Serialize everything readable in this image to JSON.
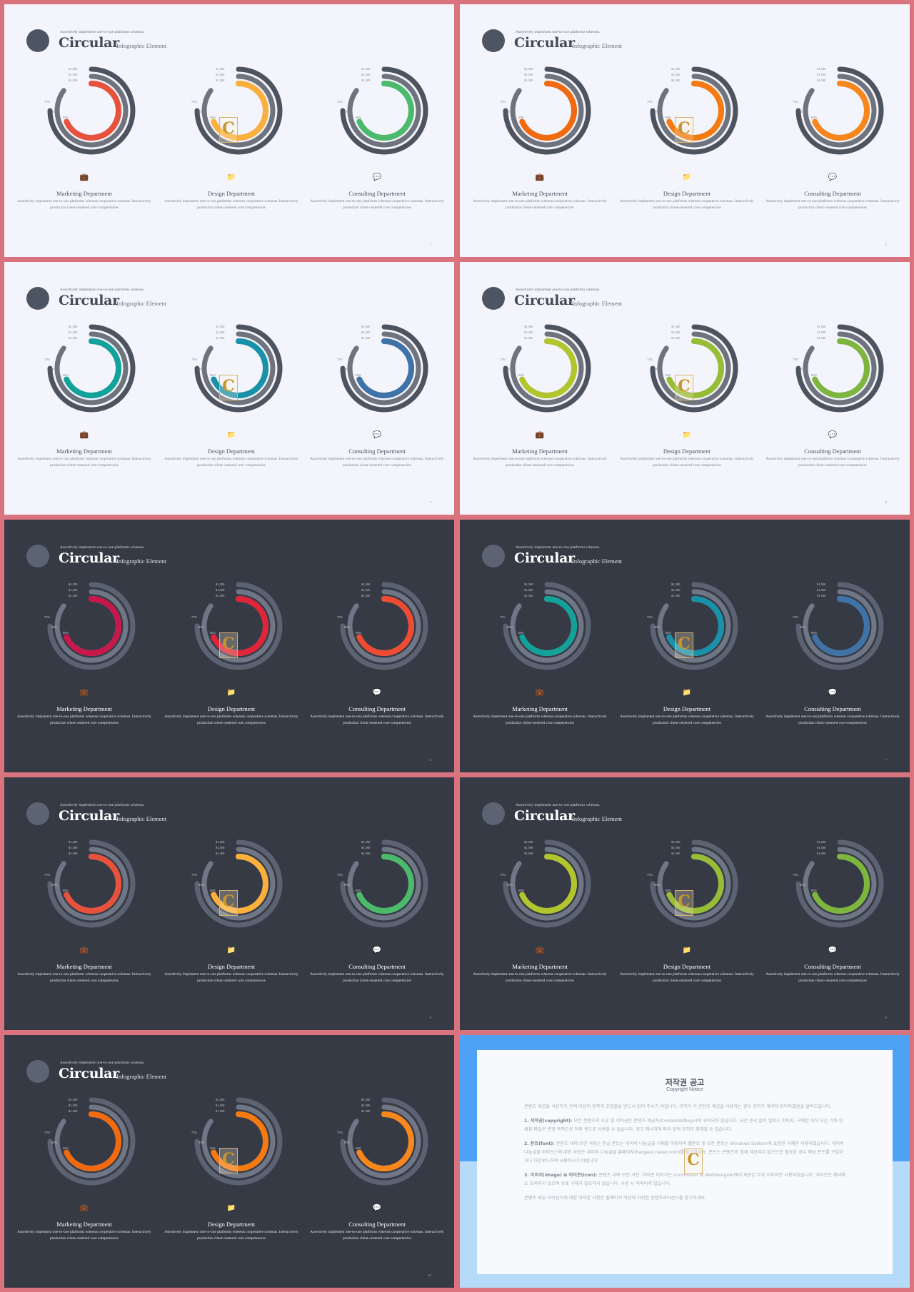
{
  "common": {
    "subtitle_top": "Assertively implement  one-to-one platforms whereas.",
    "title": "Circular",
    "title_sub": "Infographic Element",
    "values": [
      "$1,500",
      "$1,500",
      "$1,500"
    ],
    "percents": [
      "75%",
      "85%",
      "60%"
    ],
    "badge_letter": "C",
    "departments": [
      {
        "title": "Marketing Department",
        "icon": "briefcase-icon",
        "glyph": "💼",
        "desc": "Assertively implement  one-to-one platforms whereas cooperative schemas. Interactively productize  client-centered  core competencies"
      },
      {
        "title": "Design Department",
        "icon": "folder-icon",
        "glyph": "📁",
        "desc": "Assertively implement  one-to-one platforms whereas cooperative schemas. Interactively productize  client-centered  core competencies"
      },
      {
        "title": "Consulting Department",
        "icon": "speech-bubble-icon",
        "glyph": "💬",
        "desc": "Assertively implement  one-to-one platforms whereas cooperative schemas. Interactively productize  client-centered  core competencies"
      }
    ]
  },
  "slides": [
    {
      "theme": "light",
      "page": "1",
      "colors": [
        "#e8523c",
        "#fbb03b",
        "#4bbb6b"
      ]
    },
    {
      "theme": "light",
      "page": "2",
      "colors": [
        "#f16a10",
        "#f57b10",
        "#f7871c"
      ]
    },
    {
      "theme": "light",
      "page": "4",
      "colors": [
        "#13a29a",
        "#1792a8",
        "#3f73a8"
      ]
    },
    {
      "theme": "light",
      "page": "3",
      "colors": [
        "#b3c52c",
        "#97bc36",
        "#7eb53e"
      ]
    },
    {
      "theme": "dark",
      "page": "6",
      "colors": [
        "#c8174a",
        "#e0243a",
        "#ef4b33"
      ]
    },
    {
      "theme": "dark",
      "page": "7",
      "colors": [
        "#13a29a",
        "#1792a8",
        "#3f73a8"
      ]
    },
    {
      "theme": "dark",
      "page": "8",
      "colors": [
        "#e8523c",
        "#fbb03b",
        "#4bbb6b"
      ]
    },
    {
      "theme": "dark",
      "page": "9",
      "colors": [
        "#b3c52c",
        "#97bc36",
        "#7eb53e"
      ]
    },
    {
      "theme": "dark",
      "page": "10",
      "colors": [
        "#f16a10",
        "#f57b10",
        "#f7871c"
      ]
    }
  ],
  "chart_data": {
    "type": "radial-bar",
    "series": [
      {
        "value": 75,
        "label": "75%"
      },
      {
        "value": 85,
        "label": "85%"
      },
      {
        "value": 60,
        "label": "60%"
      }
    ]
  },
  "copyright": {
    "title": "저작권 공고",
    "subtitle": "Copyright Notice",
    "paragraphs": [
      {
        "head": "",
        "text": "콘텐츠 제공을 사용하기 전에 다음의 항목과 조항들을 반드시 읽어 주시기 바랍니다. 귀하가 이 콘텐츠 제공을 사용하는 경우 귀하가 계약에 동의하였음을 알려드립니다."
      },
      {
        "head": "1. 저작권(copyright):",
        "text": " 모든 콘텐츠의 소유 및 저작권은 콘텐츠 제공자(Contentsofkeyo)에 귀속되어 있습니다. 사전 승낙 없이 업로드 이미지, 구매한 서식 또는 기타 인쇄된 파일은 변경 목적으로 이외 용도로 사용할 수 없습니다. 경고 메시지에 따라 법적 조치가 취해질 수 있습니다."
      },
      {
        "head": "2. 폰트(font):",
        "text": " 콘텐츠 내에 쓰인 서체는 한글 폰트는 네이버 나눔글꼴 서체를 이용하며 웹폰트 및 모든 폰트는 Windows System에 포함된 서체만 사용되었습니다. 네이버 나눔글꼴 라이선스에 대한 사항은 네이버 나눔글꼴 홈페이지(hangeul.naver.com)를 참조하세요. 폰트는 콘텐츠와 함께 제공되지 않으므로 필요한 경우 해당 폰트를 구입하거나 다운로드하여 사용하시기 바랍니다."
      },
      {
        "head": "3. 이미지(image) & 아이콘(icon):",
        "text": " 콘텐츠 내에 쓰인 사진, 아이콘 이미지는 iconmonstr 및 Webdesigner에서 제공된 무료 이미지만 사용되었습니다. 아이콘은 확대해도 흐려지지 않으며 유료 구매가 필요하지 않습니다. 사용 시 허락되지 않습니다."
      },
      {
        "head": "",
        "text": "콘텐츠 제공 라이선스에 대한 자세한 사항은 홈페이지 하단에 사전된 콘텐츠라이선스를 참고하세요."
      }
    ]
  }
}
